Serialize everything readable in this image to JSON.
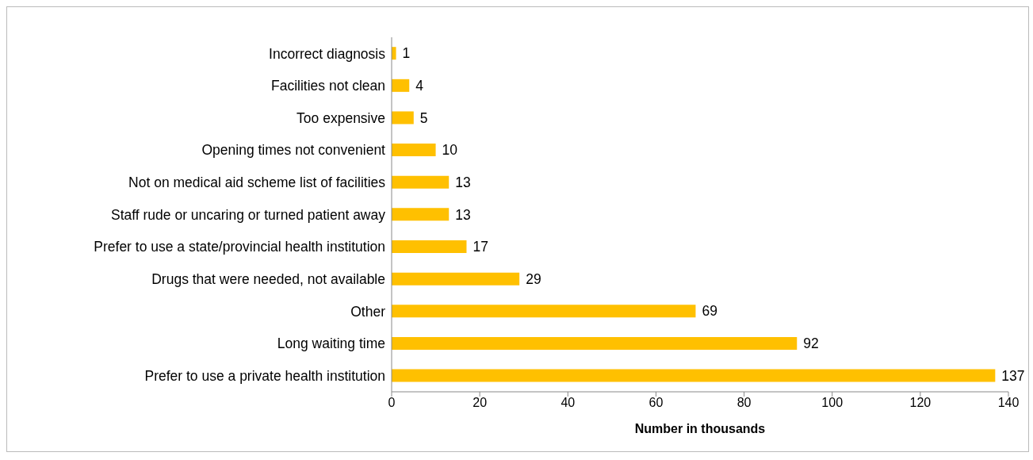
{
  "chart_data": {
    "type": "bar",
    "orientation": "horizontal",
    "xlabel": "Number in thousands",
    "categories": [
      "Incorrect diagnosis",
      "Facilities not clean",
      "Too expensive",
      "Opening times not convenient",
      "Not on medical aid scheme list of facilities",
      "Staff rude or uncaring or turned patient away",
      "Prefer to use a state/provincial health institution",
      "Drugs that were needed, not available",
      "Other",
      "Long waiting time",
      "Prefer to use a private health institution"
    ],
    "values": [
      1,
      4,
      5,
      10,
      13,
      13,
      17,
      29,
      69,
      92,
      137
    ],
    "color": "#ffc000",
    "xlim": [
      0,
      140
    ],
    "xticks": [
      0,
      20,
      40,
      60,
      80,
      100,
      120,
      140
    ],
    "data_labels": true,
    "grid": false
  }
}
